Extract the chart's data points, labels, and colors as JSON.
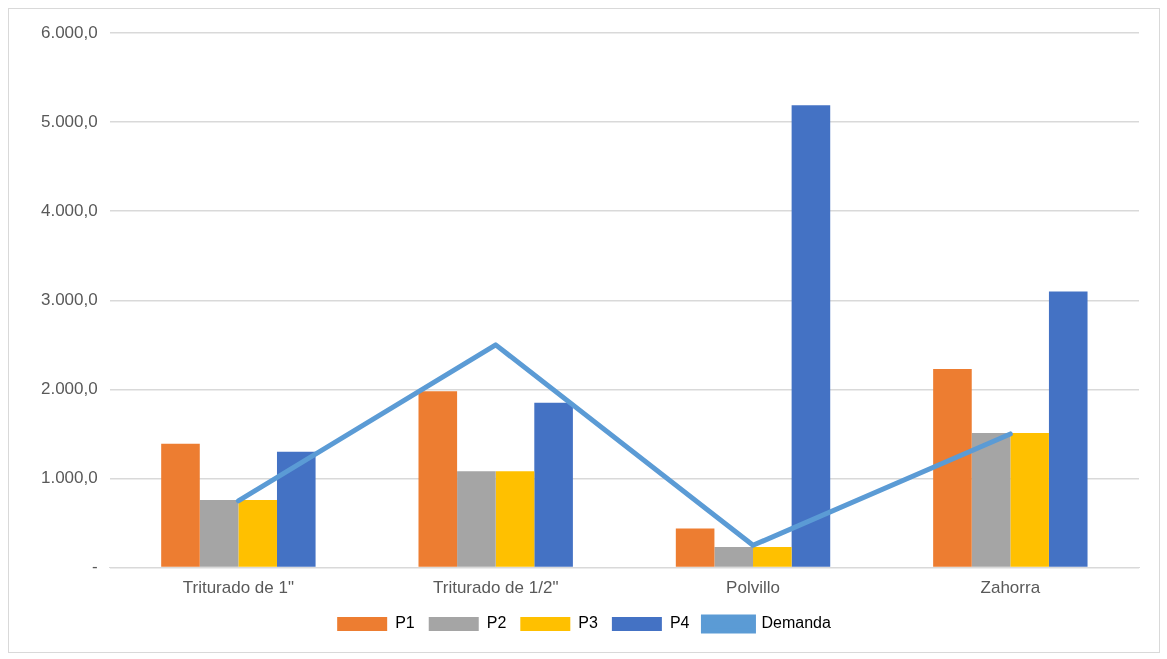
{
  "chart_data": {
    "type": "bar",
    "categories": [
      "Triturado de 1\"",
      "Triturado de 1/2\"",
      "Polvillo",
      "Zahorra"
    ],
    "series": [
      {
        "name": "P1",
        "color": "#ed7d31",
        "values": [
          1390,
          1980,
          440,
          2230
        ]
      },
      {
        "name": "P2",
        "color": "#a5a5a5",
        "values": [
          760,
          1080,
          230,
          1510
        ]
      },
      {
        "name": "P3",
        "color": "#ffc000",
        "values": [
          760,
          1080,
          230,
          1510
        ]
      },
      {
        "name": "P4",
        "color": "#4472c4",
        "values": [
          1300,
          1850,
          5190,
          3100
        ]
      },
      {
        "name": "Demanda",
        "type": "line",
        "color": "#5b9bd5",
        "values": [
          750,
          2500,
          250,
          1500
        ],
        "marker": "none"
      }
    ],
    "ylim": [
      0,
      6000
    ],
    "yticks": [
      {
        "value": 0,
        "label": "-"
      },
      {
        "value": 1000,
        "label": "1.000,0"
      },
      {
        "value": 2000,
        "label": "2.000,0"
      },
      {
        "value": 3000,
        "label": "3.000,0"
      },
      {
        "value": 4000,
        "label": "4.000,0"
      },
      {
        "value": 5000,
        "label": "5.000,0"
      },
      {
        "value": 6000,
        "label": "6.000,0"
      }
    ],
    "grid": "y",
    "legend": "bottom"
  }
}
